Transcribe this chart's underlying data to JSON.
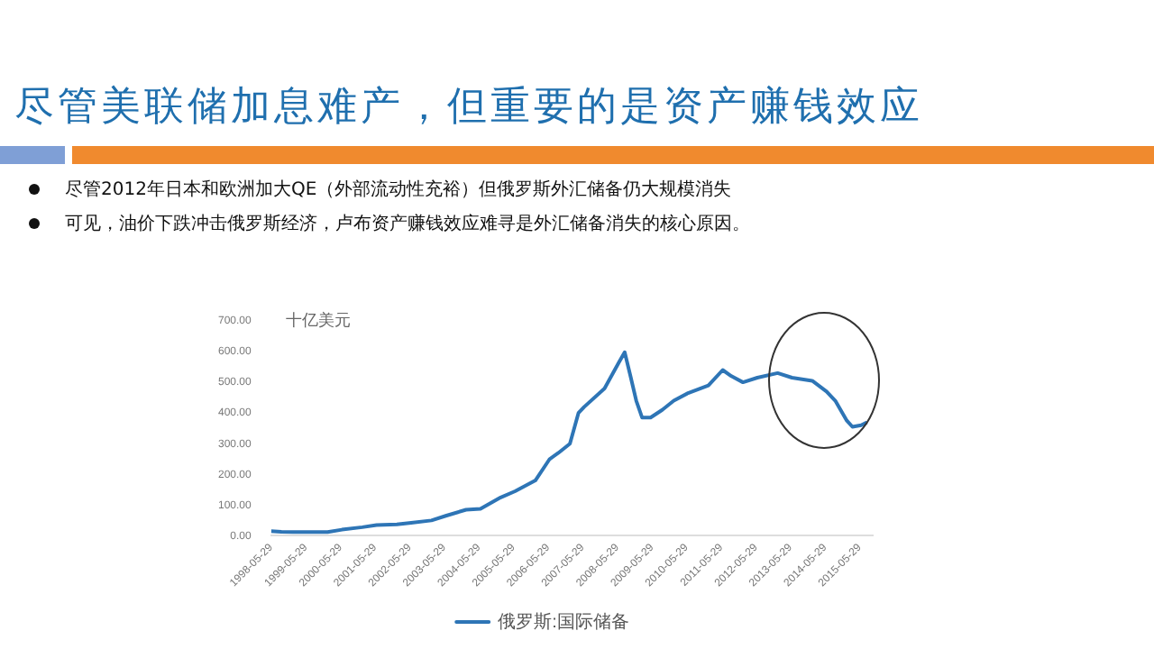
{
  "chart_data": {
    "type": "line",
    "title": "尽管美联储加息难产，但重要的是资产赚钱效应",
    "annotations": [
      "尽管2012年日本和欧洲加大QE（外部流动性充裕）但俄罗斯外汇储备仍大规模消失",
      "可见，油价下跌冲击俄罗斯经济，卢布资产赚钱效应难寻是外汇储备消失的核心原因。"
    ],
    "ylabel": "十亿美元",
    "x": [
      "1998-05-29",
      "1998-09",
      "1999-01",
      "1999-06",
      "2000-01",
      "2000-06",
      "2001-01",
      "2001-06",
      "2002-01",
      "2002-06",
      "2003-01",
      "2003-06",
      "2004-01",
      "2004-06",
      "2005-01",
      "2005-06",
      "2006-01",
      "2006-06",
      "2006-09",
      "2007-01",
      "2007-04",
      "2007-06",
      "2008-01",
      "2008-06",
      "2008-08",
      "2008-10",
      "2008-12",
      "2009-02",
      "2009-05",
      "2009-09",
      "2010-01",
      "2010-06",
      "2011-01",
      "2011-06",
      "2011-09",
      "2012-01",
      "2012-06",
      "2013-01",
      "2013-06",
      "2014-01",
      "2014-06",
      "2014-09",
      "2015-01",
      "2015-03",
      "2015-06",
      "2015-08"
    ],
    "series": [
      {
        "name": "俄罗斯:国际储备",
        "color": "#2e75b6",
        "values": [
          15,
          13,
          12,
          12,
          12,
          20,
          28,
          35,
          37,
          42,
          50,
          65,
          85,
          88,
          125,
          145,
          180,
          250,
          270,
          300,
          400,
          420,
          480,
          565,
          598,
          520,
          440,
          385,
          385,
          410,
          440,
          465,
          490,
          540,
          520,
          500,
          515,
          530,
          515,
          505,
          470,
          440,
          375,
          355,
          360,
          370
        ]
      }
    ],
    "xlim": [
      "1998-05-29",
      "2015-10-15"
    ],
    "xticks": [
      "1998-05-29",
      "1999-05-29",
      "2000-05-29",
      "2001-05-29",
      "2002-05-29",
      "2003-05-29",
      "2004-05-29",
      "2005-05-29",
      "2006-05-29",
      "2007-05-29",
      "2008-05-29",
      "2009-05-29",
      "2010-05-29",
      "2011-05-29",
      "2012-05-29",
      "2013-05-29",
      "2014-05-29",
      "2015-05-29"
    ],
    "ylim": [
      0,
      700
    ],
    "yticks": [
      {
        "value": 0,
        "label": "0.00"
      },
      {
        "value": 100,
        "label": "100.00"
      },
      {
        "value": 200,
        "label": "200.00"
      },
      {
        "value": 300,
        "label": "300.00"
      },
      {
        "value": 400,
        "label": "400.00"
      },
      {
        "value": 500,
        "label": "500.00"
      },
      {
        "value": 600,
        "label": "600.00"
      },
      {
        "value": 700,
        "label": "700.00"
      }
    ],
    "legend": "bottom",
    "grid": false,
    "marker": "none",
    "line_style": "solid"
  }
}
